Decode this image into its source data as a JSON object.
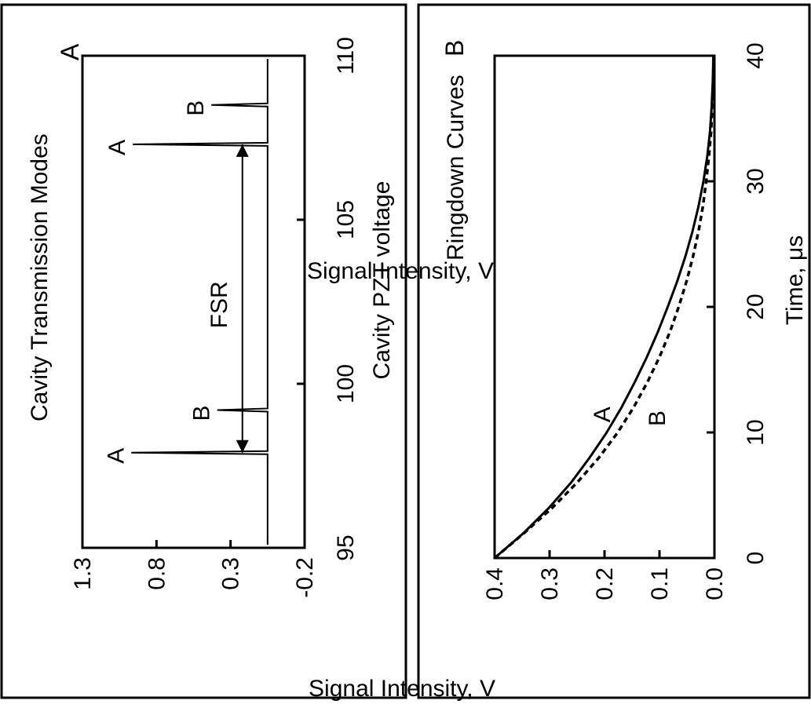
{
  "chart_data": [
    {
      "panel_label": "A",
      "type": "line",
      "title": "Cavity Transmission Modes",
      "xlabel": "Cavity PZT voltage",
      "ylabel": "Signal Intensity, V",
      "xlim": [
        95,
        110
      ],
      "ylim": [
        -0.2,
        1.3
      ],
      "x_ticks": [
        "95",
        "100",
        "105",
        "110"
      ],
      "y_ticks": [
        "-0.2",
        "0.3",
        "0.8",
        "1.3"
      ],
      "baseline": 0.05,
      "peaks": [
        {
          "x": 97.9,
          "y": 0.97,
          "label": "A"
        },
        {
          "x": 99.2,
          "y": 0.39,
          "label": "B"
        },
        {
          "x": 107.3,
          "y": 0.96,
          "label": "A"
        },
        {
          "x": 108.5,
          "y": 0.43,
          "label": "B"
        }
      ],
      "annotation": {
        "text": "FSR",
        "x_start": 97.9,
        "x_end": 107.3,
        "y": 0.22
      }
    },
    {
      "panel_label": "B",
      "type": "line",
      "title": "Ringdown Curves",
      "xlabel": "Time, μs",
      "ylabel": "Signal Intensity, V",
      "xlim": [
        0,
        40
      ],
      "ylim": [
        0.0,
        0.4
      ],
      "x_ticks": [
        "0",
        "10",
        "20",
        "30",
        "40"
      ],
      "y_ticks": [
        "0.0",
        "0.1",
        "0.2",
        "0.3",
        "0.4"
      ],
      "series": [
        {
          "name": "A",
          "style": "solid",
          "x": [
            0,
            2,
            4,
            6,
            8,
            10,
            12,
            14,
            16,
            18,
            20,
            22,
            24,
            26,
            28,
            30,
            32,
            34,
            36,
            38,
            40
          ],
          "y": [
            0.4,
            0.347,
            0.301,
            0.261,
            0.227,
            0.196,
            0.169,
            0.145,
            0.123,
            0.103,
            0.085,
            0.068,
            0.053,
            0.04,
            0.029,
            0.02,
            0.013,
            0.008,
            0.005,
            0.003,
            0.002
          ]
        },
        {
          "name": "B",
          "style": "dashed",
          "x": [
            0,
            2,
            4,
            6,
            8,
            10,
            12,
            14,
            16,
            18,
            20,
            22,
            24,
            26,
            28,
            30,
            32,
            34,
            36,
            38,
            40
          ],
          "y": [
            0.4,
            0.346,
            0.295,
            0.25,
            0.21,
            0.176,
            0.147,
            0.122,
            0.1,
            0.081,
            0.065,
            0.051,
            0.039,
            0.029,
            0.021,
            0.015,
            0.01,
            0.006,
            0.004,
            0.002,
            0.001
          ]
        }
      ],
      "curve_labels": [
        {
          "text": "A",
          "x": 10.8,
          "y": 0.19
        },
        {
          "text": "B",
          "x": 10.5,
          "y": 0.09
        }
      ]
    }
  ]
}
